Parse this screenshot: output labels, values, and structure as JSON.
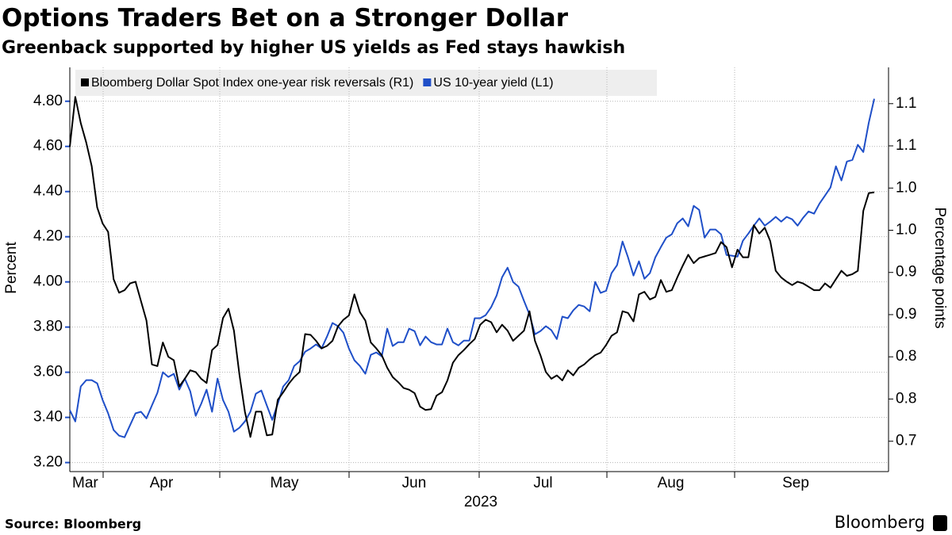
{
  "chart_data": {
    "type": "line",
    "title": "Options Traders Bet on a Stronger Dollar",
    "subtitle": "Greenback supported by higher US yields as Fed stays hawkish",
    "source": "Source: Bloomberg",
    "brand": "Bloomberg",
    "months": [
      "Mar",
      "Apr",
      "May",
      "Jun",
      "Jul",
      "Aug",
      "Sep"
    ],
    "xlabel": "2023",
    "ylabel": "Percent",
    "y2label": "Percentage points",
    "ylim": [
      3.16,
      4.95
    ],
    "yticks": [
      {
        "value": 3.2,
        "label": "3.20"
      },
      {
        "value": 3.4,
        "label": "3.40"
      },
      {
        "value": 3.6,
        "label": "3.60"
      },
      {
        "value": 3.8,
        "label": "3.80"
      },
      {
        "value": 4.0,
        "label": "4.00"
      },
      {
        "value": 4.2,
        "label": "4.20"
      },
      {
        "value": 4.4,
        "label": "4.40"
      },
      {
        "value": 4.6,
        "label": "4.60"
      },
      {
        "value": 4.8,
        "label": "4.80"
      }
    ],
    "y2lim": [
      0.664,
      1.143
    ],
    "y2ticks": [
      {
        "value": 0.7,
        "label": "0.7"
      },
      {
        "value": 0.75,
        "label": "0.8"
      },
      {
        "value": 0.8,
        "label": "0.8"
      },
      {
        "value": 0.85,
        "label": "0.9"
      },
      {
        "value": 0.9,
        "label": "0.9"
      },
      {
        "value": 0.95,
        "label": "1.0"
      },
      {
        "value": 1.0,
        "label": "1.0"
      },
      {
        "value": 1.05,
        "label": "1.1"
      },
      {
        "value": 1.1,
        "label": "1.1"
      }
    ],
    "grid": true,
    "series": [
      {
        "name": "Bloomberg Dollar Spot Index one-year risk reversals (R1)",
        "color": "#000000",
        "axis": "y2",
        "values": [
          1.049,
          1.108,
          1.077,
          1.054,
          1.026,
          0.977,
          0.958,
          0.948,
          0.892,
          0.876,
          0.879,
          0.887,
          0.889,
          0.866,
          0.843,
          0.791,
          0.789,
          0.817,
          0.8,
          0.796,
          0.765,
          0.774,
          0.784,
          0.782,
          0.774,
          0.769,
          0.808,
          0.814,
          0.846,
          0.857,
          0.831,
          0.779,
          0.735,
          0.705,
          0.735,
          0.735,
          0.707,
          0.708,
          0.749,
          0.758,
          0.768,
          0.776,
          0.782,
          0.827,
          0.826,
          0.819,
          0.81,
          0.813,
          0.819,
          0.836,
          0.844,
          0.849,
          0.874,
          0.853,
          0.843,
          0.817,
          0.81,
          0.802,
          0.787,
          0.776,
          0.77,
          0.763,
          0.761,
          0.757,
          0.741,
          0.737,
          0.738,
          0.754,
          0.758,
          0.772,
          0.793,
          0.802,
          0.808,
          0.815,
          0.821,
          0.838,
          0.844,
          0.841,
          0.829,
          0.838,
          0.831,
          0.819,
          0.825,
          0.831,
          0.854,
          0.819,
          0.802,
          0.782,
          0.774,
          0.778,
          0.772,
          0.784,
          0.778,
          0.787,
          0.791,
          0.797,
          0.802,
          0.805,
          0.814,
          0.825,
          0.829,
          0.854,
          0.852,
          0.842,
          0.874,
          0.877,
          0.868,
          0.871,
          0.891,
          0.877,
          0.879,
          0.894,
          0.908,
          0.921,
          0.911,
          0.917,
          0.919,
          0.921,
          0.923,
          0.936,
          0.93,
          0.906,
          0.927,
          0.918,
          0.918,
          0.956,
          0.946,
          0.953,
          0.937,
          0.902,
          0.894,
          0.889,
          0.885,
          0.889,
          0.887,
          0.883,
          0.879,
          0.879,
          0.887,
          0.882,
          0.892,
          0.902,
          0.896,
          0.898,
          0.902,
          0.973,
          0.994,
          0.995
        ]
      },
      {
        "name": "US 10-year yield (L1)",
        "color": "#1f4fc8",
        "values": [
          3.432,
          3.382,
          3.537,
          3.565,
          3.565,
          3.551,
          3.477,
          3.418,
          3.344,
          3.319,
          3.312,
          3.365,
          3.418,
          3.425,
          3.396,
          3.453,
          3.509,
          3.6,
          3.579,
          3.593,
          3.523,
          3.572,
          3.516,
          3.407,
          3.46,
          3.523,
          3.425,
          3.572,
          3.477,
          3.425,
          3.337,
          3.354,
          3.382,
          3.425,
          3.505,
          3.519,
          3.453,
          3.389,
          3.46,
          3.537,
          3.565,
          3.628,
          3.649,
          3.691,
          3.705,
          3.723,
          3.705,
          3.758,
          3.818,
          3.804,
          3.775,
          3.705,
          3.653,
          3.628,
          3.593,
          3.677,
          3.688,
          3.67,
          3.793,
          3.716,
          3.733,
          3.733,
          3.793,
          3.782,
          3.719,
          3.758,
          3.733,
          3.723,
          3.723,
          3.793,
          3.733,
          3.719,
          3.74,
          3.74,
          3.839,
          3.839,
          3.853,
          3.888,
          3.94,
          4.021,
          4.063,
          4.0,
          3.979,
          3.916,
          3.856,
          3.768,
          3.782,
          3.804,
          3.786,
          3.747,
          3.846,
          3.839,
          3.874,
          3.898,
          3.891,
          3.87,
          4.0,
          3.951,
          3.961,
          4.039,
          4.074,
          4.179,
          4.109,
          4.028,
          4.091,
          4.014,
          4.039,
          4.109,
          4.154,
          4.196,
          4.211,
          4.26,
          4.281,
          4.246,
          4.337,
          4.319,
          4.196,
          4.232,
          4.232,
          4.211,
          4.119,
          4.116,
          4.112,
          4.182,
          4.214,
          4.249,
          4.281,
          4.249,
          4.267,
          4.288,
          4.267,
          4.288,
          4.277,
          4.249,
          4.284,
          4.312,
          4.302,
          4.347,
          4.382,
          4.418,
          4.512,
          4.449,
          4.533,
          4.54,
          4.607,
          4.575,
          4.705,
          4.811
        ]
      }
    ]
  }
}
